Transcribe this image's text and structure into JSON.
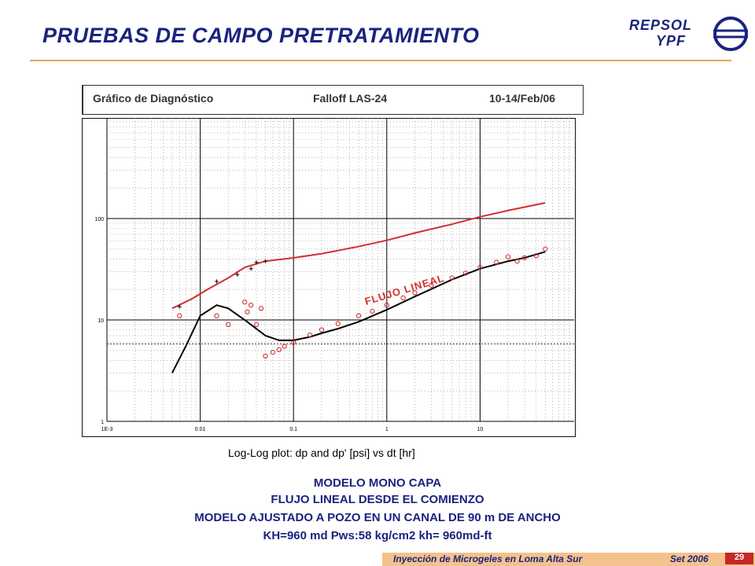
{
  "slide": {
    "title": "PRUEBAS DE CAMPO PRETRATAMIENTO",
    "logo_line1": "REPSOL",
    "logo_line2": "YPF"
  },
  "chart_header": {
    "left": "Gráfico de Diagnóstico",
    "center": "Falloff LAS-24",
    "right": "10-14/Feb/06"
  },
  "captions": [
    "MODELO MONO CAPA",
    "FLUJO LINEAL DESDE EL COMIENZO",
    "MODELO AJUSTADO A POZO EN  UN CANAL DE 90 m DE ANCHO",
    "KH=960 md   Pws:58 kg/cm2   kh=  960md-ft"
  ],
  "footer": {
    "text": "Inyección de Microgeles en Loma Alta Sur",
    "date": "Set 2006",
    "page": "29"
  },
  "colors": {
    "title": "#1a237e",
    "measured": "#d32f2f",
    "model": "#000000",
    "accent_rule": "#e8a25a"
  },
  "chart_data": {
    "type": "scatter",
    "xlabel": "Log-Log plot: dp and dp'  [psi] vs dt [hr]",
    "ylabel": "",
    "x_scale": "log",
    "y_scale": "log",
    "xlim": [
      0.001,
      100
    ],
    "ylim": [
      1,
      1000
    ],
    "x_ticks": [
      "1E-3",
      "0.01",
      "0.1",
      "1",
      "10"
    ],
    "y_ticks": [
      "1",
      "10",
      "100"
    ],
    "grid": true,
    "reference_line_y": 5.8,
    "annotation": "FLUJO LINEAL",
    "series": [
      {
        "name": "",
        "role": "dp model",
        "style": "line",
        "color": "#d32f2f",
        "x": [
          0.005,
          0.008,
          0.012,
          0.02,
          0.03,
          0.05,
          0.08,
          0.1,
          0.2,
          0.5,
          1,
          2,
          5,
          10,
          20,
          50
        ],
        "y": [
          13,
          16,
          20,
          26,
          33,
          38,
          40,
          41,
          45,
          53,
          61,
          72,
          88,
          104,
          120,
          143
        ]
      },
      {
        "name": "",
        "role": "dp measured",
        "style": "cross",
        "color": "#000000",
        "x": [
          0.006,
          0.015,
          0.025,
          0.035,
          0.04,
          0.05
        ],
        "y": [
          13.5,
          24,
          28,
          32,
          37,
          38
        ]
      },
      {
        "name": "",
        "role": "dp' model",
        "style": "line",
        "color": "#000000",
        "x": [
          0.005,
          0.007,
          0.01,
          0.015,
          0.02,
          0.03,
          0.05,
          0.07,
          0.1,
          0.15,
          0.2,
          0.3,
          0.5,
          1,
          2,
          5,
          10,
          20,
          30,
          50
        ],
        "y": [
          3,
          5.5,
          11,
          14,
          13,
          10,
          7,
          6.3,
          6.3,
          6.8,
          7.4,
          8.2,
          9.6,
          12.6,
          17,
          25,
          32,
          38,
          41,
          47
        ]
      },
      {
        "name": "",
        "role": "dp' measured",
        "style": "circle",
        "color": "#d32f2f",
        "x": [
          0.006,
          0.015,
          0.02,
          0.03,
          0.032,
          0.035,
          0.04,
          0.045,
          0.05,
          0.06,
          0.07,
          0.08,
          0.1,
          0.15,
          0.2,
          0.3,
          0.5,
          0.7,
          1,
          1.5,
          2,
          3,
          5,
          7,
          10,
          15,
          20,
          25,
          30,
          40,
          50
        ],
        "y": [
          11,
          11,
          9,
          15,
          12,
          14,
          9,
          13,
          4.4,
          4.8,
          5.1,
          5.5,
          6,
          7.1,
          8,
          9.2,
          11,
          12.2,
          14,
          16.5,
          18.5,
          22,
          26,
          29,
          33,
          37,
          42,
          38,
          41,
          43,
          50
        ]
      }
    ]
  }
}
